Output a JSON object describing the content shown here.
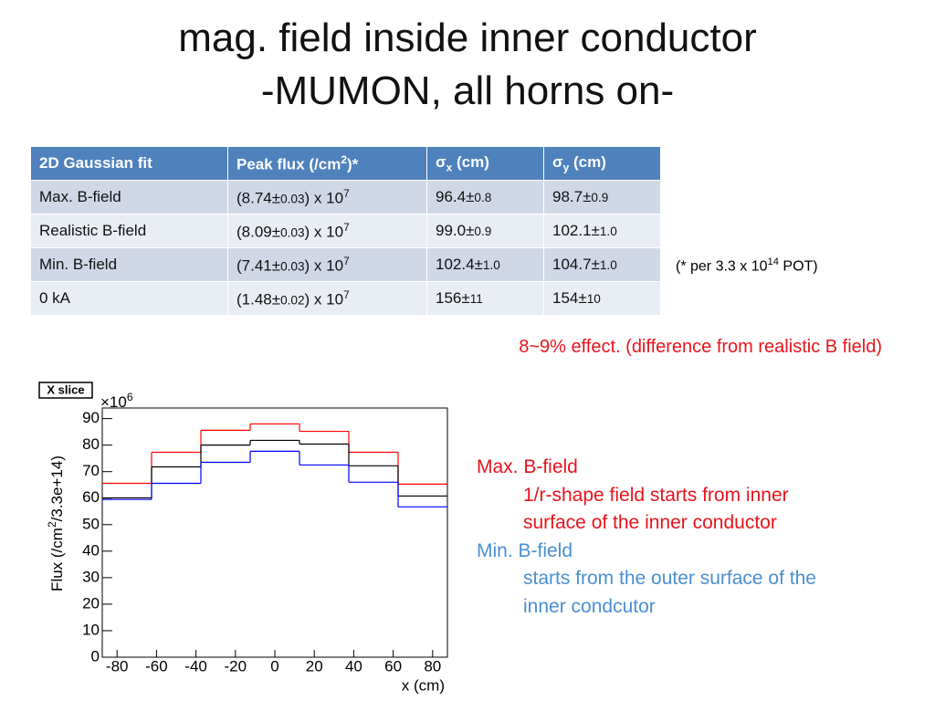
{
  "title": [
    "mag. field inside inner conductor",
    "-MUMON, all horns on-"
  ],
  "table": {
    "header": [
      [
        {
          "text": "2D Gaussian fit"
        }
      ],
      [
        {
          "text": "Peak flux (/cm"
        },
        {
          "text": "2",
          "style": "sup"
        },
        {
          "text": ")*"
        }
      ],
      [
        {
          "text": "σ"
        },
        {
          "text": "x",
          "style": "sub"
        },
        {
          "text": " (cm)"
        }
      ],
      [
        {
          "text": "σ"
        },
        {
          "text": "y",
          "style": "sub"
        },
        {
          "text": " (cm)"
        }
      ]
    ],
    "rows": [
      [
        [
          {
            "text": "Max. B-field"
          }
        ],
        [
          {
            "text": "(8.74±"
          },
          {
            "text": "0.03",
            "style": "small"
          },
          {
            "text": ") x 10"
          },
          {
            "text": "7",
            "style": "sup"
          }
        ],
        [
          {
            "text": "96.4±"
          },
          {
            "text": "0.8",
            "style": "small"
          }
        ],
        [
          {
            "text": "98.7±"
          },
          {
            "text": "0.9",
            "style": "small"
          }
        ]
      ],
      [
        [
          {
            "text": "Realistic B-field"
          }
        ],
        [
          {
            "text": "(8.09±"
          },
          {
            "text": "0.03",
            "style": "small"
          },
          {
            "text": ") x 10"
          },
          {
            "text": "7",
            "style": "sup"
          }
        ],
        [
          {
            "text": "99.0±"
          },
          {
            "text": "0.9",
            "style": "small"
          }
        ],
        [
          {
            "text": "102.1±"
          },
          {
            "text": "1.0",
            "style": "small"
          }
        ]
      ],
      [
        [
          {
            "text": "Min. B-field"
          }
        ],
        [
          {
            "text": "(7.41±"
          },
          {
            "text": "0.03",
            "style": "small"
          },
          {
            "text": ") x 10"
          },
          {
            "text": "7",
            "style": "sup"
          }
        ],
        [
          {
            "text": "102.4±"
          },
          {
            "text": "1.0",
            "style": "small"
          }
        ],
        [
          {
            "text": "104.7±"
          },
          {
            "text": "1.0",
            "style": "small"
          }
        ]
      ],
      [
        [
          {
            "text": "0 kA"
          }
        ],
        [
          {
            "text": "(1.48±"
          },
          {
            "text": "0.02",
            "style": "small"
          },
          {
            "text": ") x 10"
          },
          {
            "text": "7",
            "style": "sup"
          }
        ],
        [
          {
            "text": "156±"
          },
          {
            "text": "11",
            "style": "small"
          }
        ],
        [
          {
            "text": "154±"
          },
          {
            "text": "10",
            "style": "small"
          }
        ]
      ]
    ]
  },
  "footnote": [
    {
      "text": "(* per 3.3 x 10"
    },
    {
      "text": "14",
      "style": "sup"
    },
    {
      "text": " POT)"
    }
  ],
  "effect_note": "8~9% effect. (difference from realistic B field)",
  "annotations": [
    {
      "text": "Max. B-field",
      "color": "#e8141b",
      "indent": false
    },
    {
      "text": "1/r-shape field starts from inner",
      "color": "#e8141b",
      "indent": true
    },
    {
      "text": "surface of the inner conductor",
      "color": "#e8141b",
      "indent": true
    },
    {
      "text": "Min. B-field",
      "color": "#4a8fd2",
      "indent": false
    },
    {
      "text": "starts from the outer surface of the",
      "color": "#4a8fd2",
      "indent": true
    },
    {
      "text": "inner condcutor",
      "color": "#4a8fd2",
      "indent": true
    }
  ],
  "chart_data": {
    "type": "histogram",
    "title": "X slice",
    "x_label": "x (cm)",
    "y_label": [
      {
        "text": "Flux (/cm"
      },
      {
        "text": "2",
        "style": "sup"
      },
      {
        "text": "/3.3e+14)"
      }
    ],
    "y_multiplier": [
      {
        "text": "×10"
      },
      {
        "text": "6",
        "style": "sup"
      }
    ],
    "bins": [
      -87.5,
      -62.5,
      -37.5,
      -12.5,
      12.5,
      37.5,
      62.5,
      87.5
    ],
    "series": [
      {
        "color": "#ff0000",
        "values": [
          65.6,
          77.3,
          85.6,
          88,
          85.2,
          77.3,
          65.3
        ]
      },
      {
        "color": "#000000",
        "values": [
          60.1,
          71.8,
          80,
          81.8,
          80.4,
          72.2,
          60.8
        ]
      },
      {
        "color": "#0000ff",
        "values": [
          59.5,
          65.6,
          73.5,
          77.7,
          72.5,
          66,
          56.7
        ]
      }
    ],
    "xlim": [
      -87.5,
      87.5
    ],
    "ylim": [
      0,
      94
    ],
    "xticks": [
      -80,
      -60,
      -40,
      -20,
      0,
      20,
      40,
      60,
      80
    ],
    "yticks": [
      0,
      10,
      20,
      30,
      40,
      50,
      60,
      70,
      80,
      90
    ],
    "grid": false
  }
}
